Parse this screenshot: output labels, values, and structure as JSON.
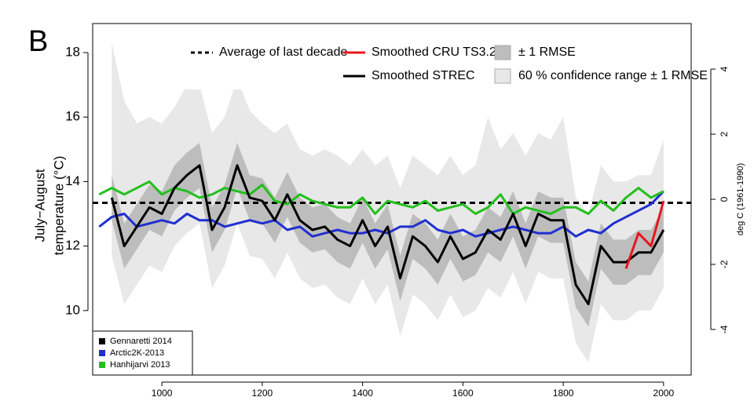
{
  "chart_data": {
    "type": "line",
    "panel_label": "B",
    "ylabel": [
      "July−August",
      "temperature (°C)"
    ],
    "y2label": "deg C (1961-1990)",
    "xlim": [
      862,
      2055
    ],
    "ylim": [
      8,
      18.9
    ],
    "y2lim": [
      -5.4,
      5.4
    ],
    "xticks": [
      1000,
      1200,
      1400,
      1600,
      1800,
      2000
    ],
    "yticks": [
      10,
      12,
      14,
      16,
      18
    ],
    "y2ticks": [
      -4,
      -2,
      0,
      2,
      4
    ],
    "x": [
      875,
      900,
      925,
      950,
      975,
      1000,
      1025,
      1050,
      1075,
      1100,
      1125,
      1150,
      1175,
      1200,
      1225,
      1250,
      1275,
      1300,
      1325,
      1350,
      1375,
      1400,
      1425,
      1450,
      1475,
      1500,
      1525,
      1550,
      1575,
      1600,
      1625,
      1650,
      1675,
      1700,
      1725,
      1750,
      1775,
      1800,
      1825,
      1850,
      1875,
      1900,
      1925,
      1950,
      1975,
      2000
    ],
    "bands": [
      {
        "name": "60 % confidence range ± 1 RMSE",
        "color": "#e8e8e8",
        "upper": [
          null,
          18.3,
          16.5,
          15.8,
          16.0,
          15.8,
          16.3,
          17.0,
          17.0,
          15.5,
          16.0,
          17.2,
          16.2,
          15.8,
          15.5,
          15.8,
          15.0,
          14.8,
          15.0,
          14.8,
          14.5,
          15.0,
          14.5,
          14.8,
          13.8,
          14.8,
          14.5,
          14.2,
          14.8,
          14.2,
          14.5,
          16.0,
          15.0,
          15.5,
          14.8,
          15.5,
          15.3,
          16.0,
          13.5,
          13.0,
          14.5,
          14.0,
          14.0,
          14.2,
          14.2,
          15.3
        ],
        "lower": [
          null,
          11.7,
          10.2,
          10.8,
          11.4,
          11.2,
          12.0,
          12.4,
          12.7,
          10.7,
          11.4,
          12.7,
          11.7,
          11.6,
          11.0,
          11.8,
          11.0,
          10.7,
          10.8,
          10.4,
          10.2,
          11.0,
          10.2,
          10.8,
          9.2,
          10.5,
          10.2,
          9.7,
          10.5,
          9.8,
          10.0,
          10.7,
          10.4,
          11.2,
          10.2,
          11.2,
          11.0,
          11.0,
          9.0,
          8.4,
          10.2,
          9.7,
          9.7,
          10.0,
          10.0,
          10.7
        ]
      },
      {
        "name": "± 1 RMSE",
        "color": "#bdbdbd",
        "upper": [
          null,
          14.2,
          12.7,
          13.3,
          13.9,
          13.7,
          14.5,
          14.9,
          15.2,
          13.2,
          13.9,
          15.2,
          14.2,
          14.1,
          13.5,
          14.3,
          13.5,
          13.2,
          13.3,
          12.9,
          12.7,
          13.5,
          12.7,
          13.3,
          11.7,
          13.0,
          12.7,
          12.2,
          13.0,
          12.3,
          12.5,
          13.2,
          12.9,
          13.7,
          12.7,
          13.7,
          13.5,
          13.5,
          11.5,
          10.9,
          12.7,
          12.2,
          12.2,
          12.5,
          12.5,
          13.2
        ],
        "lower": [
          null,
          12.8,
          11.3,
          11.9,
          12.5,
          12.3,
          13.1,
          13.5,
          13.8,
          11.8,
          12.5,
          13.8,
          12.8,
          12.7,
          12.1,
          12.9,
          12.1,
          11.8,
          11.9,
          11.5,
          11.3,
          12.1,
          11.3,
          11.9,
          10.3,
          11.6,
          11.3,
          10.8,
          11.6,
          10.9,
          11.1,
          11.8,
          11.5,
          12.3,
          11.3,
          12.3,
          12.1,
          12.1,
          10.1,
          9.5,
          11.3,
          10.8,
          10.8,
          11.1,
          11.1,
          11.8
        ]
      }
    ],
    "reference_line": {
      "name": "Average of last decade",
      "value": 13.34,
      "color": "#000000",
      "style": "dashed"
    },
    "series": [
      {
        "source": "Arctic2K-2013",
        "color": "#1f2fd0",
        "values": [
          12.6,
          12.9,
          13.0,
          12.6,
          12.7,
          12.8,
          12.7,
          13.0,
          12.8,
          12.8,
          12.6,
          12.7,
          12.8,
          12.7,
          12.8,
          12.5,
          12.6,
          12.3,
          12.4,
          12.5,
          12.4,
          12.4,
          12.5,
          12.4,
          12.6,
          12.6,
          12.8,
          12.5,
          12.4,
          12.5,
          12.3,
          12.4,
          12.5,
          12.6,
          12.5,
          12.4,
          12.4,
          12.6,
          12.3,
          12.5,
          12.4,
          12.7,
          12.9,
          13.1,
          13.3,
          13.7
        ]
      },
      {
        "source": "Hanhijarvi 2013",
        "color": "#22c01c",
        "values": [
          13.6,
          13.8,
          13.6,
          13.8,
          14.0,
          13.6,
          13.8,
          13.7,
          13.5,
          13.6,
          13.8,
          13.7,
          13.6,
          13.9,
          13.4,
          13.3,
          13.6,
          13.4,
          13.3,
          13.2,
          13.2,
          13.5,
          13.0,
          13.4,
          13.3,
          13.2,
          13.4,
          13.1,
          13.2,
          13.3,
          13.0,
          13.2,
          13.6,
          13.0,
          13.2,
          13.1,
          13.0,
          13.2,
          13.2,
          13.0,
          13.4,
          13.1,
          13.5,
          13.8,
          13.5,
          13.7
        ]
      },
      {
        "name": "Smoothed STREC",
        "source": "Gennaretti 2014",
        "color": "#000000",
        "values": [
          null,
          13.5,
          12.0,
          12.6,
          13.2,
          13.0,
          13.8,
          14.2,
          14.5,
          12.5,
          13.2,
          14.5,
          13.5,
          13.4,
          12.8,
          13.6,
          12.8,
          12.5,
          12.6,
          12.2,
          12.0,
          12.8,
          12.0,
          12.6,
          11.0,
          12.3,
          12.0,
          11.5,
          12.3,
          11.6,
          11.8,
          12.5,
          12.2,
          13.0,
          12.0,
          13.0,
          12.8,
          12.8,
          10.8,
          10.2,
          12.0,
          11.5,
          11.5,
          11.8,
          11.8,
          12.5
        ]
      },
      {
        "name": "Smoothed CRU TS3.20",
        "color": "#e8141c",
        "values": [
          null,
          null,
          null,
          null,
          null,
          null,
          null,
          null,
          null,
          null,
          null,
          null,
          null,
          null,
          null,
          null,
          null,
          null,
          null,
          null,
          null,
          null,
          null,
          null,
          null,
          null,
          null,
          null,
          null,
          null,
          null,
          null,
          null,
          null,
          null,
          null,
          null,
          null,
          null,
          null,
          null,
          null,
          11.3,
          12.4,
          12.0,
          13.4
        ]
      }
    ]
  }
}
